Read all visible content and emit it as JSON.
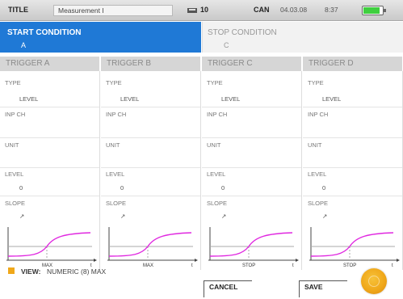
{
  "topbar": {
    "title_label": "TITLE",
    "title_value": "Measurement I",
    "device_count": "10",
    "can_label": "CAN",
    "date": "04.03.08",
    "time": "8:37",
    "battery_level": 0.8,
    "battery_color": "#3fcf3f"
  },
  "conditions": {
    "start": {
      "label": "START CONDITION",
      "value": "A"
    },
    "stop": {
      "label": "STOP CONDITION",
      "value": "C"
    }
  },
  "field_labels": {
    "type": "TYPE",
    "inp_ch": "INP CH",
    "unit": "UNIT",
    "level": "LEVEL",
    "slope": "SLOPE"
  },
  "triggers": [
    {
      "name": "TRIGGER A",
      "type": "LEVEL",
      "level": "0",
      "slope": "↗",
      "graph_label": "MAX",
      "graph_end": "t"
    },
    {
      "name": "TRIGGER B",
      "type": "LEVEL",
      "level": "0",
      "slope": "↗",
      "graph_label": "MAX",
      "graph_end": "t"
    },
    {
      "name": "TRIGGER C",
      "type": "LEVEL",
      "level": "0",
      "slope": "↗",
      "graph_label": "STOP",
      "graph_end": "t"
    },
    {
      "name": "TRIGGER D",
      "type": "LEVEL",
      "level": "0",
      "slope": "↗",
      "graph_label": "STOP",
      "graph_end": "t"
    }
  ],
  "view": {
    "label": "VIEW:",
    "value": "NUMERIC (8) MAX"
  },
  "buttons": {
    "cancel": "CANCEL",
    "save": "SAVE"
  },
  "colors": {
    "accent": "#1f79d6",
    "curve": "#e028e0",
    "knob": "#f0a81a",
    "header_bg": "#d6d6d6"
  }
}
